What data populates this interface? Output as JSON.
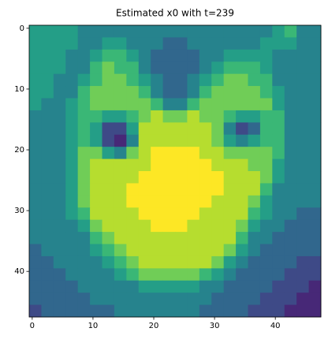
{
  "chart_data": {
    "type": "heatmap",
    "title": "Estimated x0 with t=239",
    "colormap": "viridis",
    "zlim": [
      0,
      9
    ],
    "xlim": [
      -0.5,
      47.5
    ],
    "ylim": [
      47.5,
      -0.5
    ],
    "xticks": [
      0,
      10,
      20,
      30,
      40
    ],
    "yticks": [
      0,
      10,
      20,
      30,
      40
    ],
    "z": [
      [
        5,
        5,
        5,
        5,
        4,
        4,
        4,
        4,
        4,
        4,
        4,
        4,
        4,
        4,
        4,
        4,
        4,
        4,
        4,
        4,
        5,
        6,
        4,
        4
      ],
      [
        5,
        5,
        5,
        5,
        4,
        4,
        5,
        5,
        4,
        4,
        4,
        3,
        3,
        4,
        4,
        4,
        4,
        4,
        4,
        5,
        5,
        5,
        4,
        4
      ],
      [
        5,
        5,
        5,
        4,
        4,
        5,
        6,
        6,
        5,
        4,
        3,
        3,
        3,
        3,
        4,
        4,
        5,
        5,
        5,
        5,
        4,
        4,
        4,
        4
      ],
      [
        5,
        5,
        5,
        4,
        4,
        6,
        7,
        6,
        6,
        4,
        3,
        3,
        3,
        3,
        4,
        5,
        6,
        6,
        6,
        5,
        4,
        4,
        4,
        4
      ],
      [
        5,
        5,
        4,
        4,
        5,
        6,
        7,
        7,
        6,
        5,
        4,
        3,
        3,
        4,
        5,
        6,
        7,
        7,
        6,
        6,
        4,
        4,
        4,
        4
      ],
      [
        5,
        5,
        4,
        4,
        6,
        7,
        7,
        7,
        7,
        6,
        4,
        3,
        3,
        4,
        6,
        7,
        7,
        7,
        7,
        6,
        5,
        4,
        4,
        4
      ],
      [
        5,
        4,
        4,
        5,
        6,
        7,
        7,
        7,
        7,
        7,
        6,
        4,
        4,
        6,
        7,
        7,
        7,
        7,
        7,
        7,
        5,
        4,
        4,
        4
      ],
      [
        4,
        4,
        4,
        5,
        6,
        6,
        5,
        5,
        6,
        7,
        8,
        7,
        7,
        8,
        7,
        7,
        6,
        5,
        5,
        6,
        6,
        4,
        4,
        4
      ],
      [
        4,
        4,
        4,
        5,
        6,
        5,
        2,
        2,
        5,
        8,
        8,
        8,
        8,
        8,
        8,
        7,
        4,
        2,
        3,
        6,
        6,
        4,
        4,
        4
      ],
      [
        4,
        4,
        4,
        5,
        6,
        5,
        2,
        1,
        4,
        8,
        8,
        8,
        8,
        8,
        8,
        7,
        5,
        4,
        5,
        6,
        6,
        4,
        4,
        4
      ],
      [
        4,
        4,
        4,
        5,
        7,
        7,
        5,
        4,
        7,
        8,
        9,
        9,
        9,
        9,
        8,
        8,
        7,
        7,
        7,
        7,
        6,
        4,
        4,
        4
      ],
      [
        4,
        4,
        4,
        5,
        7,
        8,
        8,
        8,
        8,
        8,
        9,
        9,
        9,
        9,
        9,
        8,
        8,
        8,
        7,
        7,
        5,
        4,
        4,
        4
      ],
      [
        4,
        4,
        4,
        5,
        7,
        8,
        8,
        8,
        8,
        9,
        9,
        9,
        9,
        9,
        9,
        9,
        8,
        8,
        8,
        7,
        5,
        4,
        4,
        4
      ],
      [
        4,
        4,
        4,
        5,
        7,
        8,
        8,
        8,
        9,
        9,
        9,
        9,
        9,
        9,
        9,
        9,
        8,
        8,
        8,
        6,
        4,
        4,
        4,
        4
      ],
      [
        4,
        4,
        4,
        5,
        7,
        8,
        8,
        8,
        9,
        9,
        9,
        9,
        9,
        9,
        9,
        8,
        8,
        8,
        7,
        5,
        4,
        4,
        4,
        4
      ],
      [
        4,
        4,
        4,
        5,
        6,
        8,
        8,
        8,
        8,
        9,
        9,
        9,
        9,
        9,
        8,
        8,
        8,
        8,
        6,
        5,
        4,
        4,
        3,
        3
      ],
      [
        4,
        4,
        4,
        4,
        5,
        7,
        8,
        8,
        8,
        8,
        9,
        9,
        9,
        8,
        8,
        8,
        8,
        7,
        5,
        4,
        4,
        3,
        3,
        3
      ],
      [
        4,
        4,
        4,
        4,
        4,
        6,
        7,
        8,
        8,
        8,
        8,
        8,
        8,
        8,
        8,
        8,
        8,
        6,
        4,
        4,
        3,
        3,
        3,
        3
      ],
      [
        3,
        4,
        4,
        4,
        4,
        5,
        6,
        7,
        8,
        8,
        8,
        8,
        8,
        8,
        8,
        8,
        7,
        5,
        4,
        3,
        3,
        3,
        3,
        3
      ],
      [
        3,
        3,
        4,
        4,
        4,
        4,
        5,
        6,
        7,
        8,
        8,
        8,
        8,
        8,
        8,
        7,
        5,
        4,
        3,
        3,
        3,
        3,
        2,
        2
      ],
      [
        3,
        3,
        3,
        4,
        4,
        4,
        4,
        5,
        6,
        7,
        7,
        7,
        7,
        7,
        6,
        5,
        4,
        3,
        3,
        3,
        3,
        2,
        2,
        2
      ],
      [
        3,
        3,
        3,
        3,
        4,
        4,
        4,
        4,
        4,
        5,
        5,
        5,
        5,
        5,
        4,
        4,
        3,
        3,
        3,
        3,
        2,
        2,
        2,
        1
      ],
      [
        3,
        3,
        3,
        3,
        3,
        4,
        4,
        4,
        4,
        4,
        4,
        4,
        4,
        4,
        4,
        3,
        3,
        3,
        3,
        2,
        2,
        2,
        1,
        1
      ],
      [
        2,
        3,
        3,
        3,
        3,
        3,
        3,
        4,
        4,
        4,
        4,
        4,
        4,
        4,
        3,
        3,
        3,
        3,
        2,
        2,
        2,
        1,
        1,
        1
      ]
    ]
  }
}
